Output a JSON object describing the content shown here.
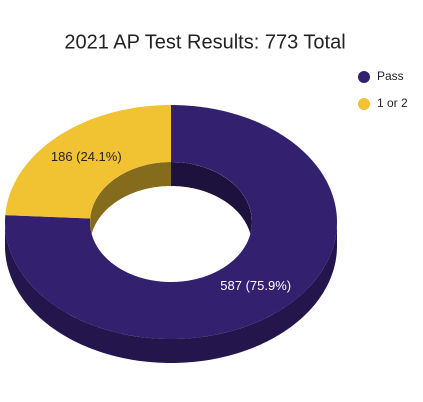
{
  "chart_data": {
    "type": "donut",
    "title": "2021 AP Test Results: 773 Total",
    "categories": [
      "Pass",
      "1 or 2"
    ],
    "values": [
      587,
      186
    ],
    "value_labels": [
      "587 (75.9%)",
      "186 (24.1%)"
    ],
    "colors": [
      "#33206e",
      "#f1c232"
    ],
    "legend": "top-right",
    "three_d": true
  }
}
